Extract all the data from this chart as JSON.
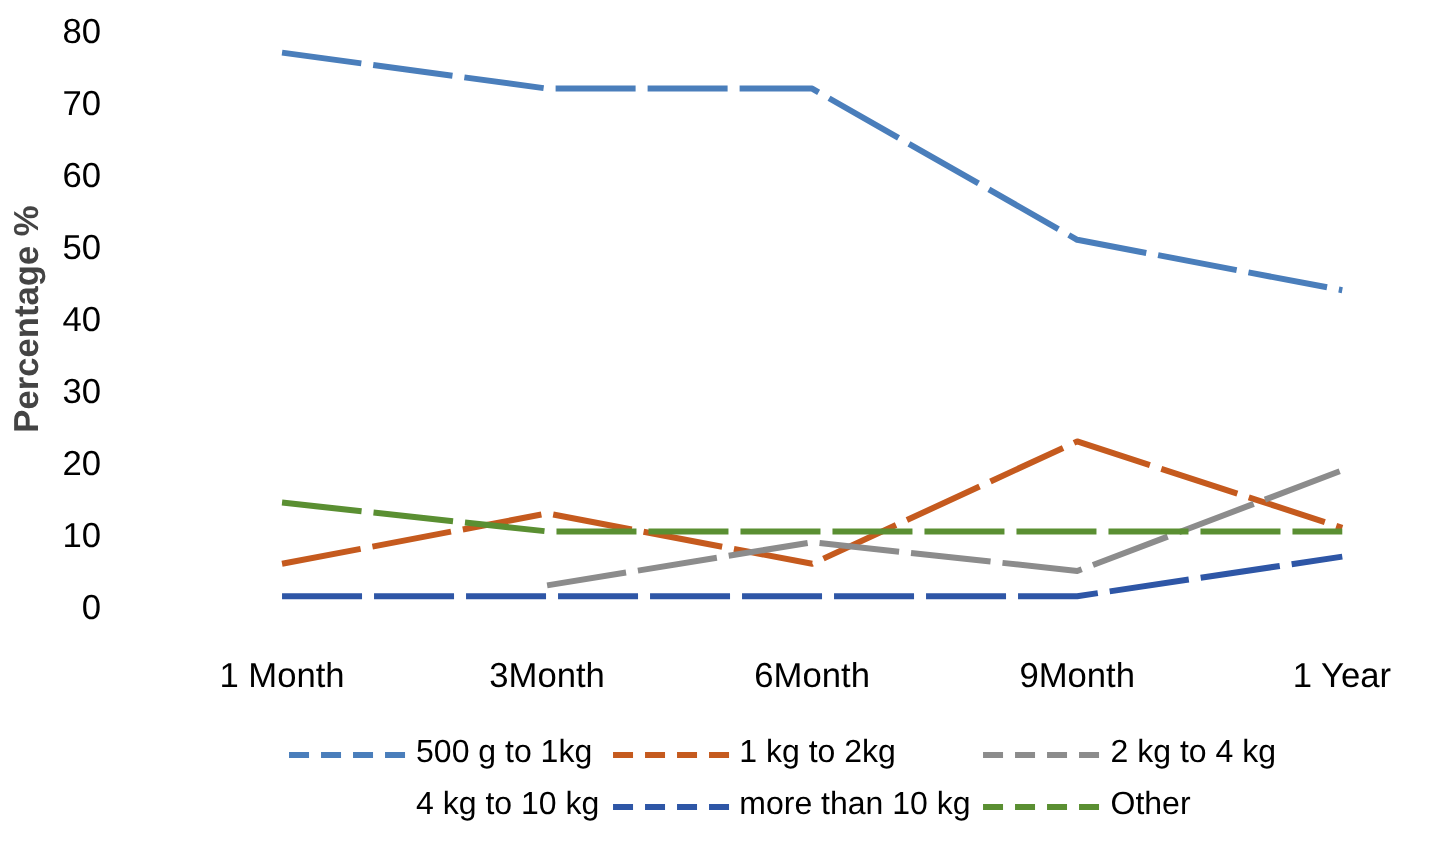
{
  "chart_data": {
    "type": "line",
    "ylabel": "Percentage %",
    "categories": [
      "1 Month",
      "3Month",
      "6Month",
      "9Month",
      "1 Year"
    ],
    "ylim": [
      0,
      80
    ],
    "yticks": [
      0,
      10,
      20,
      30,
      40,
      50,
      60,
      70,
      80
    ],
    "grid": false,
    "legend": "bottom",
    "line_style": "dashed",
    "marker": "none",
    "series": [
      {
        "name": "500 g to 1kg",
        "color": "#4a7ebb",
        "values": [
          77,
          72,
          72,
          51,
          44
        ]
      },
      {
        "name": "1 kg to 2kg",
        "color": "#c55a1e",
        "values": [
          6,
          13,
          6,
          23,
          11
        ]
      },
      {
        "name": "2 kg to 4 kg",
        "color": "#8c8c8c",
        "values": [
          null,
          3,
          9,
          5,
          19
        ]
      },
      {
        "name": "4 kg to 10 kg",
        "values": [
          null,
          null,
          null,
          null,
          null
        ]
      },
      {
        "name": "more than 10 kg",
        "color": "#2e56a6",
        "values": [
          1.5,
          1.5,
          1.5,
          1.5,
          7
        ]
      },
      {
        "name": "Other",
        "color": "#5a8f32",
        "values": [
          14.5,
          10.5,
          10.5,
          10.5,
          10.5
        ]
      }
    ]
  }
}
